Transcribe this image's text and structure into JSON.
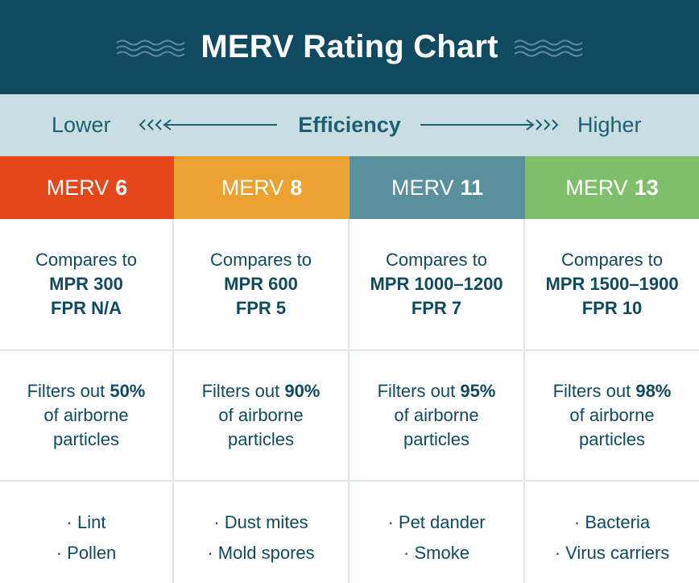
{
  "header": {
    "title": "MERV Rating Chart"
  },
  "efficiency": {
    "lower": "Lower",
    "label": "Efficiency",
    "higher": "Higher"
  },
  "columns": [
    {
      "merv": "MERV",
      "number": "6",
      "color": "#e6471a",
      "compares_to": "Compares to",
      "mpr": "MPR 300",
      "fpr": "FPR N/A",
      "filters_prefix": "Filters out",
      "percent": "50%",
      "filters_line2": "of airborne",
      "filters_line3": "particles",
      "examples": [
        "· Lint",
        "· Pollen"
      ]
    },
    {
      "merv": "MERV",
      "number": "8",
      "color": "#eca230",
      "compares_to": "Compares to",
      "mpr": "MPR 600",
      "fpr": "FPR 5",
      "filters_prefix": "Filters out",
      "percent": "90%",
      "filters_line2": "of airborne",
      "filters_line3": "particles",
      "examples": [
        "· Dust mites",
        "· Mold spores"
      ]
    },
    {
      "merv": "MERV",
      "number": "11",
      "color": "#5a8f9e",
      "compares_to": "Compares to",
      "mpr": "MPR 1000–1200",
      "fpr": "FPR 7",
      "filters_prefix": "Filters out",
      "percent": "95%",
      "filters_line2": "of airborne",
      "filters_line3": "particles",
      "examples": [
        "· Pet dander",
        "· Smoke"
      ]
    },
    {
      "merv": "MERV",
      "number": "13",
      "color": "#7fbe6b",
      "compares_to": "Compares to",
      "mpr": "MPR 1500–1900",
      "fpr": "FPR 10",
      "filters_prefix": "Filters out",
      "percent": "98%",
      "filters_line2": "of airborne",
      "filters_line3": "particles",
      "examples": [
        "· Bacteria",
        "· Virus carriers"
      ]
    }
  ],
  "colors": {
    "header_bg": "#0f4a60",
    "efficiency_bg": "#c9dee2",
    "text": "#0f4a60"
  }
}
